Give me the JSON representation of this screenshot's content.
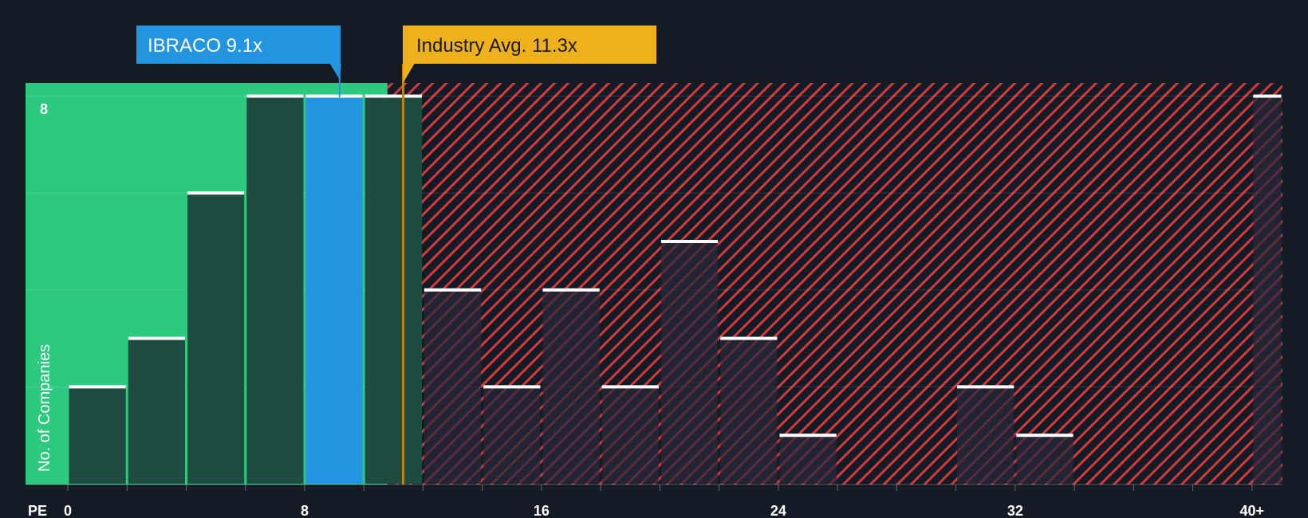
{
  "chart_data": {
    "type": "bar",
    "title": "",
    "xlabel": "PE",
    "ylabel": "No. of Companies",
    "x_ticks": [
      "0",
      "8",
      "16",
      "24",
      "32",
      "40+"
    ],
    "x_tick_values": [
      0,
      8,
      16,
      24,
      32,
      40
    ],
    "y_ticks": [
      "8"
    ],
    "xlim": [
      0,
      41.6
    ],
    "ylim": [
      0,
      8.3
    ],
    "bins": [
      {
        "start": 0,
        "end": 2,
        "count": 2
      },
      {
        "start": 2,
        "end": 4,
        "count": 3
      },
      {
        "start": 4,
        "end": 6,
        "count": 6
      },
      {
        "start": 6,
        "end": 8,
        "count": 8
      },
      {
        "start": 8,
        "end": 10,
        "count": 8,
        "highlight": true
      },
      {
        "start": 10,
        "end": 12,
        "count": 8
      },
      {
        "start": 12,
        "end": 14,
        "count": 4
      },
      {
        "start": 14,
        "end": 16,
        "count": 2
      },
      {
        "start": 16,
        "end": 18,
        "count": 4
      },
      {
        "start": 18,
        "end": 20,
        "count": 2
      },
      {
        "start": 20,
        "end": 22,
        "count": 5
      },
      {
        "start": 22,
        "end": 24,
        "count": 3
      },
      {
        "start": 24,
        "end": 26,
        "count": 1
      },
      {
        "start": 26,
        "end": 28,
        "count": 0
      },
      {
        "start": 28,
        "end": 30,
        "count": 0
      },
      {
        "start": 30,
        "end": 32,
        "count": 2
      },
      {
        "start": 32,
        "end": 34,
        "count": 1
      },
      {
        "start": 34,
        "end": 36,
        "count": 0
      },
      {
        "start": 36,
        "end": 38,
        "count": 0
      },
      {
        "start": 38,
        "end": 40,
        "count": 0
      },
      {
        "start": 40,
        "end": 41.6,
        "count": 8
      }
    ],
    "company": {
      "label": "IBRACO 9.1x",
      "value": 9.1
    },
    "industry": {
      "label": "Industry Avg. 11.3x",
      "value": 11.3
    },
    "fair_region_end": 10.8
  },
  "colors": {
    "background": "#151b24",
    "green_zone": "#2dc97e",
    "dark_bar": "#1f4c40",
    "highlight_bar": "#2394e0",
    "red_hatch": "#d33a3f",
    "company_callout": "#2394e0",
    "industry_callout": "#eeb11b",
    "industry_line": "#b8861b",
    "cap": "#ffffff"
  }
}
